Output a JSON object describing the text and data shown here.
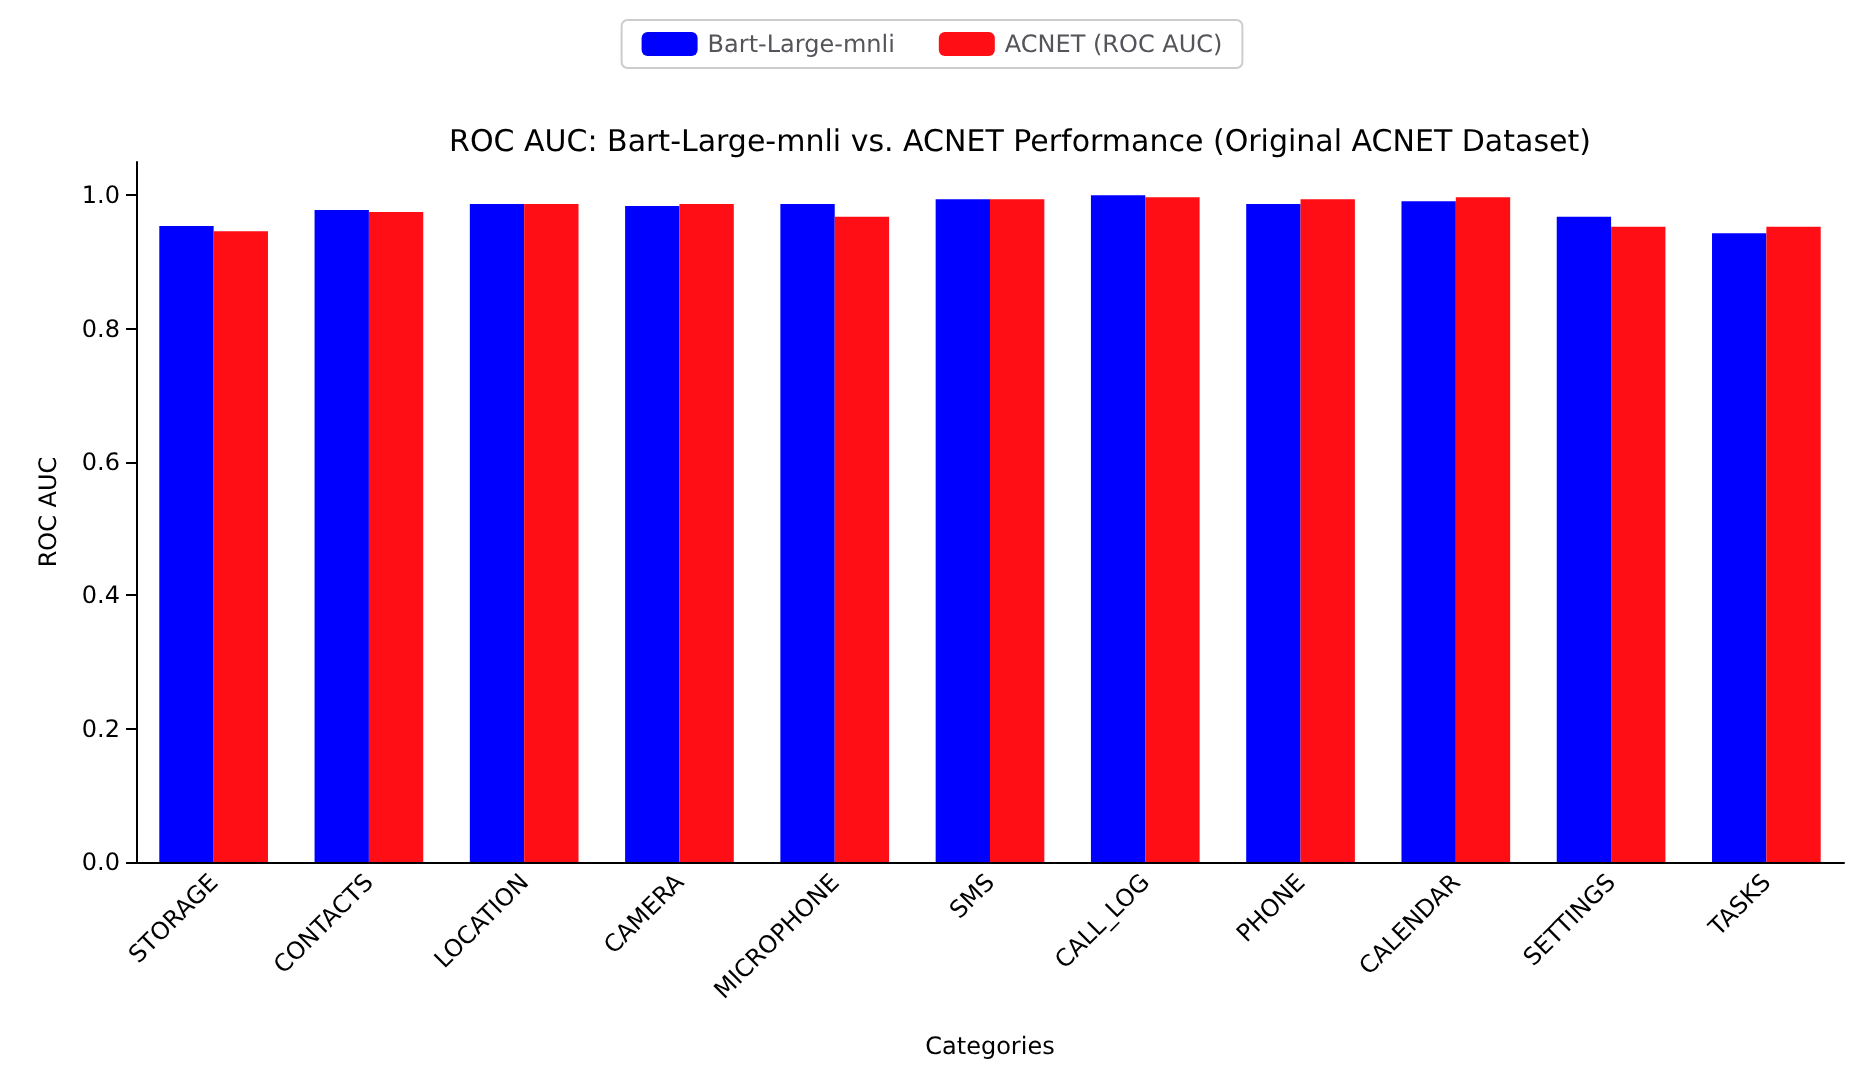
{
  "chart_data": {
    "type": "bar",
    "title": "ROC AUC: Bart-Large-mnli vs. ACNET Performance (Original ACNET Dataset)",
    "xlabel": "Categories",
    "ylabel": "ROC AUC",
    "categories": [
      "STORAGE",
      "CONTACTS",
      "LOCATION",
      "CAMERA",
      "MICROPHONE",
      "SMS",
      "CALL_LOG",
      "PHONE",
      "CALENDAR",
      "SETTINGS",
      "TASKS"
    ],
    "series": [
      {
        "name": "Bart-Large-mnli",
        "color": "#0000ff",
        "values": [
          0.954,
          0.978,
          0.987,
          0.984,
          0.987,
          0.994,
          1.0,
          0.987,
          0.991,
          0.968,
          0.943
        ]
      },
      {
        "name": "ACNET (ROC AUC)",
        "color": "#ff0e16",
        "values": [
          0.946,
          0.975,
          0.987,
          0.987,
          0.968,
          0.994,
          0.997,
          0.994,
          0.997,
          0.953,
          0.953
        ]
      }
    ],
    "ylim": [
      0,
      1.05
    ],
    "yticks": [
      {
        "value": 0,
        "label": "0.0"
      },
      {
        "value": 0.2,
        "label": "0.2"
      },
      {
        "value": 0.4,
        "label": "0.4"
      },
      {
        "value": 0.6,
        "label": "0.6"
      },
      {
        "value": 0.8,
        "label": "0.8"
      },
      {
        "value": 1,
        "label": "1.0"
      }
    ],
    "grid": false,
    "legend": "top"
  }
}
